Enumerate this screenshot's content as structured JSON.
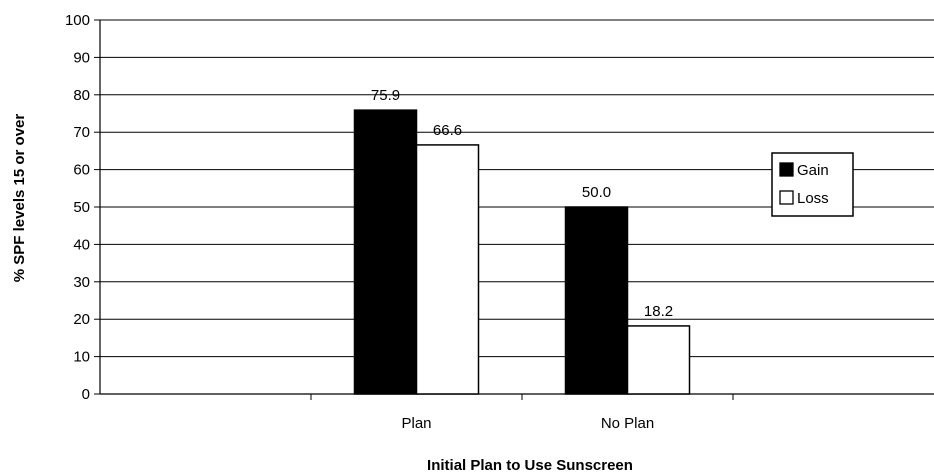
{
  "chart_data": {
    "type": "bar",
    "title": "",
    "xlabel": "Initial Plan to Use Sunscreen",
    "ylabel": "% SPF levels 15 or over",
    "categories": [
      "Plan",
      "No Plan"
    ],
    "series": [
      {
        "name": "Gain",
        "values": [
          75.9,
          50.0
        ],
        "labels": [
          "75.9",
          "50.0"
        ],
        "color": "#000000"
      },
      {
        "name": "Loss",
        "values": [
          66.6,
          18.2
        ],
        "labels": [
          "66.6",
          "18.2"
        ],
        "color": "#ffffff"
      }
    ],
    "ylim": [
      0,
      100
    ],
    "yticks": [
      "0",
      "10",
      "20",
      "30",
      "40",
      "50",
      "60",
      "70",
      "80",
      "90",
      "100"
    ],
    "grid": true,
    "legend_position": "right"
  }
}
